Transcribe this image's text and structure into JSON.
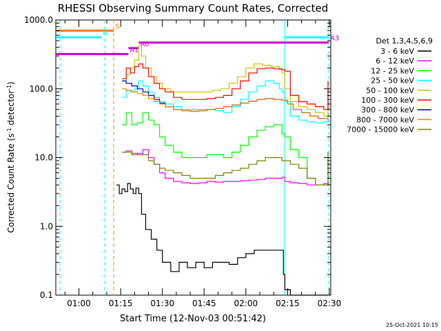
{
  "chart_data": {
    "type": "line",
    "title": "RHESSI Observing Summary Count Rates, Corrected",
    "xlabel": "Start Time (12-Nov-03 00:51:42)",
    "ylabel_main": "Corrected Count Rate (s",
    "ylabel_sup1": "-1",
    "ylabel_mid": " detector",
    "ylabel_sup2": "-1",
    "ylabel_end": ")",
    "y_scale": "log",
    "ylim": [
      0.1,
      1000
    ],
    "xlim_minutes": [
      51.7,
      150.5
    ],
    "x_ticks": [
      {
        "t": 60,
        "label": "01:00"
      },
      {
        "t": 75,
        "label": "01:15"
      },
      {
        "t": 90,
        "label": "01:30"
      },
      {
        "t": 105,
        "label": "01:45"
      },
      {
        "t": 120,
        "label": "02:00"
      },
      {
        "t": 135,
        "label": "02:15"
      },
      {
        "t": 150,
        "label": "02:30"
      }
    ],
    "y_ticks": [
      {
        "v": 0.1,
        "label": "0.1"
      },
      {
        "v": 1,
        "label": "1.0"
      },
      {
        "v": 10,
        "label": "10.0"
      },
      {
        "v": 100,
        "label": "100.0"
      },
      {
        "v": 1000,
        "label": "1000.0"
      }
    ],
    "legend_title": "Det 1,3,4,5,6,9",
    "legend_position": "right",
    "grid": false,
    "date_stamp": "25-Oct-2021 10:15",
    "series": [
      {
        "name": "3 - 6 keV",
        "color": "#000000",
        "t": [
          73.5,
          74.5,
          75.5,
          76.5,
          77.5,
          78.5,
          79.5,
          80.5,
          81.5,
          82.5,
          84,
          86,
          88,
          90,
          93,
          96,
          99,
          102,
          105,
          108,
          111,
          114,
          117,
          120,
          123,
          126,
          129,
          131,
          133,
          133.5,
          134,
          136,
          138,
          140,
          142,
          144,
          146,
          148,
          149.5
        ],
        "v": [
          4,
          3,
          3.5,
          3.2,
          4.2,
          3.5,
          3,
          3.6,
          3,
          1.5,
          0.9,
          0.65,
          0.45,
          0.3,
          0.22,
          0.3,
          0.25,
          0.3,
          0.25,
          0.3,
          0.3,
          0.28,
          0.35,
          0.4,
          0.45,
          0.45,
          0.45,
          0.45,
          0.45,
          0.2,
          0.12,
          0.1,
          0.1,
          0.1,
          0.1,
          0.1,
          0.1,
          0.1,
          0.1
        ]
      },
      {
        "name": "6 - 12 keV",
        "color": "#ff00ff",
        "t": [
          75.5,
          77,
          79,
          81,
          83,
          85,
          87,
          89,
          91,
          94,
          97,
          100,
          103,
          106,
          109,
          112,
          115,
          118,
          121,
          124,
          127,
          130,
          133,
          134,
          136,
          139,
          142,
          145,
          148,
          149.5
        ],
        "v": [
          12,
          12.5,
          11.5,
          11,
          13,
          10,
          8,
          6,
          5,
          4.5,
          4.3,
          4.2,
          4.3,
          4.5,
          4.4,
          4.5,
          4.5,
          4.6,
          4.7,
          4.8,
          5,
          5,
          5.2,
          4.5,
          4.3,
          4.2,
          4,
          4,
          4.2,
          4.5
        ]
      },
      {
        "name": "12 - 25 keV",
        "color": "#00ff00",
        "t": [
          75.5,
          77,
          79,
          81,
          83,
          85,
          87,
          89,
          91,
          94,
          97,
          100,
          103,
          106,
          109,
          112,
          115,
          118,
          121,
          124,
          127,
          130,
          133,
          134,
          136,
          139,
          142,
          145,
          148,
          149.5
        ],
        "v": [
          30,
          45,
          30,
          32,
          45,
          35,
          30,
          20,
          15,
          12,
          10,
          10,
          10,
          11,
          11,
          10,
          12,
          15,
          20,
          25,
          28,
          30,
          22,
          20,
          13,
          10,
          5,
          4,
          4,
          12
        ]
      },
      {
        "name": "25 - 50 keV",
        "color": "#00ffff",
        "t": [
          75.5,
          77,
          78.5,
          80,
          81.5,
          83,
          85,
          87,
          89,
          91,
          94,
          97,
          100,
          103,
          106,
          109,
          112,
          115,
          118,
          121,
          124,
          127,
          130,
          132,
          133,
          134,
          136,
          139,
          142,
          145,
          148,
          149.5
        ],
        "v": [
          75,
          95,
          90,
          100,
          130,
          110,
          90,
          75,
          65,
          60,
          55,
          50,
          50,
          50,
          50,
          48,
          45,
          55,
          70,
          90,
          110,
          130,
          120,
          100,
          90,
          65,
          40,
          35,
          33,
          32,
          33,
          45
        ]
      },
      {
        "name": "50 - 100 keV",
        "color": "#c8c800",
        "t": [
          75.5,
          77,
          78.5,
          80,
          81.5,
          82.5,
          84,
          86,
          88,
          90,
          93,
          96,
          99,
          102,
          105,
          108,
          111,
          114,
          117,
          120,
          123,
          126,
          129,
          132,
          133,
          134,
          136,
          139,
          142,
          145,
          148,
          149.5
        ],
        "v": [
          130,
          160,
          200,
          260,
          420,
          300,
          200,
          150,
          120,
          100,
          90,
          90,
          90,
          90,
          90,
          95,
          100,
          120,
          150,
          200,
          230,
          220,
          210,
          190,
          170,
          100,
          65,
          55,
          50,
          45,
          40,
          60
        ]
      },
      {
        "name": "100 - 300 keV",
        "color": "#ff0000",
        "t": [
          75.5,
          77,
          78.5,
          80,
          81.5,
          83,
          85,
          87,
          89,
          91,
          94,
          97,
          100,
          103,
          106,
          109,
          112,
          115,
          118,
          121,
          124,
          127,
          130,
          133,
          134,
          136,
          139,
          142,
          145,
          148,
          149.5
        ],
        "v": [
          140,
          200,
          170,
          210,
          230,
          200,
          150,
          120,
          100,
          90,
          75,
          70,
          70,
          70,
          72,
          75,
          80,
          100,
          130,
          170,
          195,
          200,
          195,
          190,
          180,
          80,
          65,
          60,
          55,
          50,
          130
        ]
      },
      {
        "name": "300 - 800 keV",
        "color": "#0000c8",
        "t": [
          75.5,
          77,
          79,
          81,
          83,
          85,
          87,
          89,
          91,
          94,
          97,
          100,
          103,
          106,
          109,
          112,
          115,
          118,
          121,
          124,
          127,
          130,
          133,
          135,
          137,
          140,
          143,
          146,
          149.5
        ],
        "v": [
          130,
          120,
          110,
          100,
          90,
          80,
          70,
          62,
          55,
          50,
          48,
          47,
          48,
          50,
          52,
          55,
          58,
          62,
          66,
          70,
          72,
          70,
          68,
          60,
          50,
          45,
          40,
          37,
          35
        ]
      },
      {
        "name": "800 - 7000 keV",
        "color": "#ff8000",
        "t": [
          75.5,
          77,
          79,
          81,
          83,
          85,
          87,
          89,
          91,
          94,
          97,
          100,
          103,
          106,
          109,
          112,
          115,
          118,
          121,
          124,
          127,
          130,
          133,
          135,
          137,
          140,
          143,
          146,
          149.5
        ],
        "v": [
          100,
          95,
          90,
          85,
          80,
          72,
          66,
          60,
          55,
          50,
          48,
          47,
          48,
          50,
          52,
          55,
          58,
          62,
          66,
          70,
          72,
          70,
          68,
          60,
          50,
          45,
          40,
          37,
          35
        ]
      },
      {
        "name": "7000 - 15000 keV",
        "color": "#808000",
        "t": [
          75.5,
          77,
          79,
          81,
          83,
          85,
          87,
          89,
          91,
          94,
          97,
          100,
          103,
          106,
          109,
          112,
          115,
          118,
          121,
          124,
          127,
          130,
          133,
          134,
          136,
          139,
          142,
          145,
          148,
          149.5
        ],
        "v": [
          12,
          12,
          11,
          11.5,
          11,
          9,
          8,
          7,
          6.5,
          6,
          5.5,
          5,
          5,
          5,
          5.5,
          6,
          6.5,
          7,
          8,
          9,
          10,
          10,
          9,
          9,
          8,
          7,
          5,
          4,
          4,
          12
        ]
      }
    ],
    "attenuator_bars": [
      {
        "label": "S",
        "color": "#ff8000",
        "t0": 51.7,
        "t1": 72.5,
        "v": 700
      },
      {
        "label": "N",
        "color": "#00ffff",
        "t0": 51.7,
        "t1": 68,
        "v": 560
      },
      {
        "label": "A1",
        "color": "#cc00cc",
        "t0": 51.7,
        "t1": 77.8,
        "v": 320
      },
      {
        "label": "A0",
        "color": "#cc00cc",
        "t0": 77.8,
        "t1": 81.5,
        "v": 390
      },
      {
        "label": "A3",
        "color": "#cc00cc",
        "t0": 81.5,
        "t1": 149.8,
        "v": 470
      },
      {
        "label": "",
        "color": "#00ffff",
        "t0": 134,
        "t1": 149.8,
        "v": 560
      }
    ],
    "vertical_lines": [
      {
        "t": 53.2,
        "color": "#00ffff",
        "style": "dashed"
      },
      {
        "t": 69.3,
        "color": "#00ffff",
        "style": "dashed"
      },
      {
        "t": 72.5,
        "color": "#ff8000",
        "style": "dashed"
      },
      {
        "t": 134,
        "color": "#00ffff",
        "style": "solid"
      },
      {
        "t": 149.8,
        "color": "#00ffff",
        "style": "dashed"
      }
    ]
  }
}
